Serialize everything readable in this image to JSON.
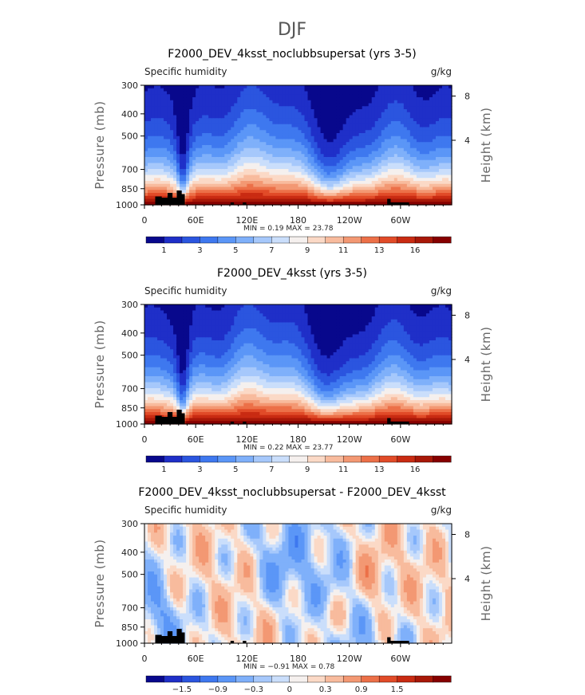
{
  "figure": {
    "title": "DJF"
  },
  "colors": {
    "full_palette": [
      "#08088c",
      "#1f2fc8",
      "#2b55df",
      "#3e78ef",
      "#5b96f7",
      "#7fb0fa",
      "#a6c8fb",
      "#cadefb",
      "#f5f0ee",
      "#fbd9c6",
      "#f8bb9d",
      "#f39873",
      "#ec7048",
      "#e14b28",
      "#c92b12",
      "#a81808",
      "#860000"
    ],
    "diff_palette": [
      "#08088c",
      "#1f2fc8",
      "#2b55df",
      "#3e78ef",
      "#5b96f7",
      "#7fb0fa",
      "#a6c8fb",
      "#cadefb",
      "#f5f0ee",
      "#fbd9c6",
      "#f8bb9d",
      "#f39873",
      "#ec7048",
      "#e14b28",
      "#c92b12",
      "#a81808",
      "#860000"
    ],
    "terrain": "#000000"
  },
  "chart_data": [
    {
      "type": "heatmap",
      "id": "panel1",
      "title": "F2000_DEV_4ksst_noclubbsupersat (yrs 3-5)",
      "left_label": "Specific humidity",
      "right_label": "g/kg",
      "xlabel": "",
      "ylabel": "Pressure (mb)",
      "y2label": "Height (km)",
      "x_ticks": [
        "0",
        "60E",
        "120E",
        "180",
        "120W",
        "60W"
      ],
      "y_ticks": [
        "300",
        "400",
        "500",
        "700",
        "850",
        "1000"
      ],
      "y2_ticks": [
        "8",
        "4"
      ],
      "min_label": "MIN =",
      "min": "0.19",
      "max_label": "MAX =",
      "max": "23.78",
      "colorbar_labels": [
        "1",
        "3",
        "5",
        "7",
        "9",
        "11",
        "13",
        "16"
      ],
      "field": "full"
    },
    {
      "type": "heatmap",
      "id": "panel2",
      "title": "F2000_DEV_4ksst (yrs 3-5)",
      "left_label": "Specific humidity",
      "right_label": "g/kg",
      "xlabel": "",
      "ylabel": "Pressure (mb)",
      "y2label": "Height (km)",
      "x_ticks": [
        "0",
        "60E",
        "120E",
        "180",
        "120W",
        "60W"
      ],
      "y_ticks": [
        "300",
        "400",
        "500",
        "700",
        "850",
        "1000"
      ],
      "y2_ticks": [
        "8",
        "4"
      ],
      "min_label": "MIN =",
      "min": "0.22",
      "max_label": "MAX =",
      "max": "23.77",
      "colorbar_labels": [
        "1",
        "3",
        "5",
        "7",
        "9",
        "11",
        "13",
        "16"
      ],
      "field": "full2"
    },
    {
      "type": "heatmap",
      "id": "panel3",
      "title": "F2000_DEV_4ksst_noclubbsupersat - F2000_DEV_4ksst",
      "left_label": "Specific humidity",
      "right_label": "g/kg",
      "xlabel": "",
      "ylabel": "Pressure (mb)",
      "y2label": "Height (km)",
      "x_ticks": [
        "0",
        "60E",
        "120E",
        "180",
        "120W",
        "60W"
      ],
      "y_ticks": [
        "300",
        "400",
        "500",
        "700",
        "850",
        "1000"
      ],
      "y2_ticks": [
        "8",
        "4"
      ],
      "min_label": "MIN =",
      "min": "−0.91",
      "max_label": "MAX =",
      "max": "0.78",
      "colorbar_labels": [
        "−1.5",
        "−0.9",
        "−0.3",
        "0",
        "0.3",
        "0.9",
        "1.5"
      ],
      "field": "diff"
    }
  ]
}
